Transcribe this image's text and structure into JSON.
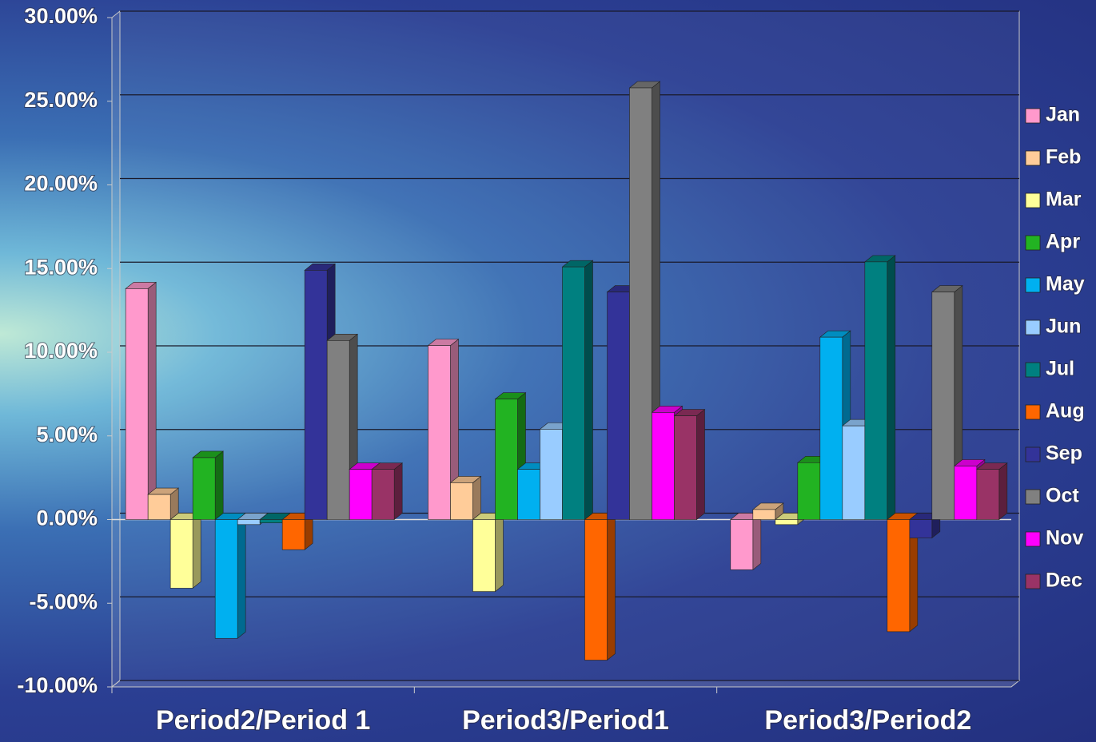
{
  "chart_data": {
    "type": "bar",
    "categories": [
      "Period2/Period 1",
      "Period3/Period1",
      "Period3/Period2"
    ],
    "series": [
      {
        "name": "Jan",
        "color": "#ff99cc",
        "values": [
          13.8,
          10.4,
          -3.0
        ]
      },
      {
        "name": "Feb",
        "color": "#ffcc99",
        "values": [
          1.5,
          2.2,
          0.6
        ]
      },
      {
        "name": "Mar",
        "color": "#ffff99",
        "values": [
          -4.1,
          -4.3,
          -0.3
        ]
      },
      {
        "name": "Apr",
        "color": "#22b322",
        "values": [
          3.7,
          7.2,
          3.4
        ]
      },
      {
        "name": "May",
        "color": "#00b0f0",
        "values": [
          -7.1,
          3.0,
          10.9
        ]
      },
      {
        "name": "Jun",
        "color": "#99ccff",
        "values": [
          -0.3,
          5.4,
          5.6
        ]
      },
      {
        "name": "Jul",
        "color": "#008080",
        "values": [
          -0.2,
          15.1,
          15.4
        ]
      },
      {
        "name": "Aug",
        "color": "#ff6600",
        "values": [
          -1.8,
          -8.4,
          -6.7
        ]
      },
      {
        "name": "Sep",
        "color": "#333399",
        "values": [
          14.9,
          13.6,
          -1.1
        ]
      },
      {
        "name": "Oct",
        "color": "#808080",
        "values": [
          10.7,
          25.8,
          13.6
        ]
      },
      {
        "name": "Nov",
        "color": "#ff00ff",
        "values": [
          3.0,
          6.4,
          3.2
        ]
      },
      {
        "name": "Dec",
        "color": "#993366",
        "values": [
          3.0,
          6.2,
          3.0
        ]
      }
    ],
    "ylim": [
      -10,
      30
    ],
    "yticks": [
      {
        "value": -10,
        "label": "-10.00%"
      },
      {
        "value": -5,
        "label": "-5.00%"
      },
      {
        "value": 0,
        "label": "0.00%"
      },
      {
        "value": 5,
        "label": "5.00%"
      },
      {
        "value": 10,
        "label": "10.00%"
      },
      {
        "value": 15,
        "label": "15.00%"
      },
      {
        "value": 20,
        "label": "20.00%"
      },
      {
        "value": 25,
        "label": "25.00%"
      },
      {
        "value": 30,
        "label": "30.00%"
      }
    ],
    "grid": true,
    "legend": "right"
  }
}
